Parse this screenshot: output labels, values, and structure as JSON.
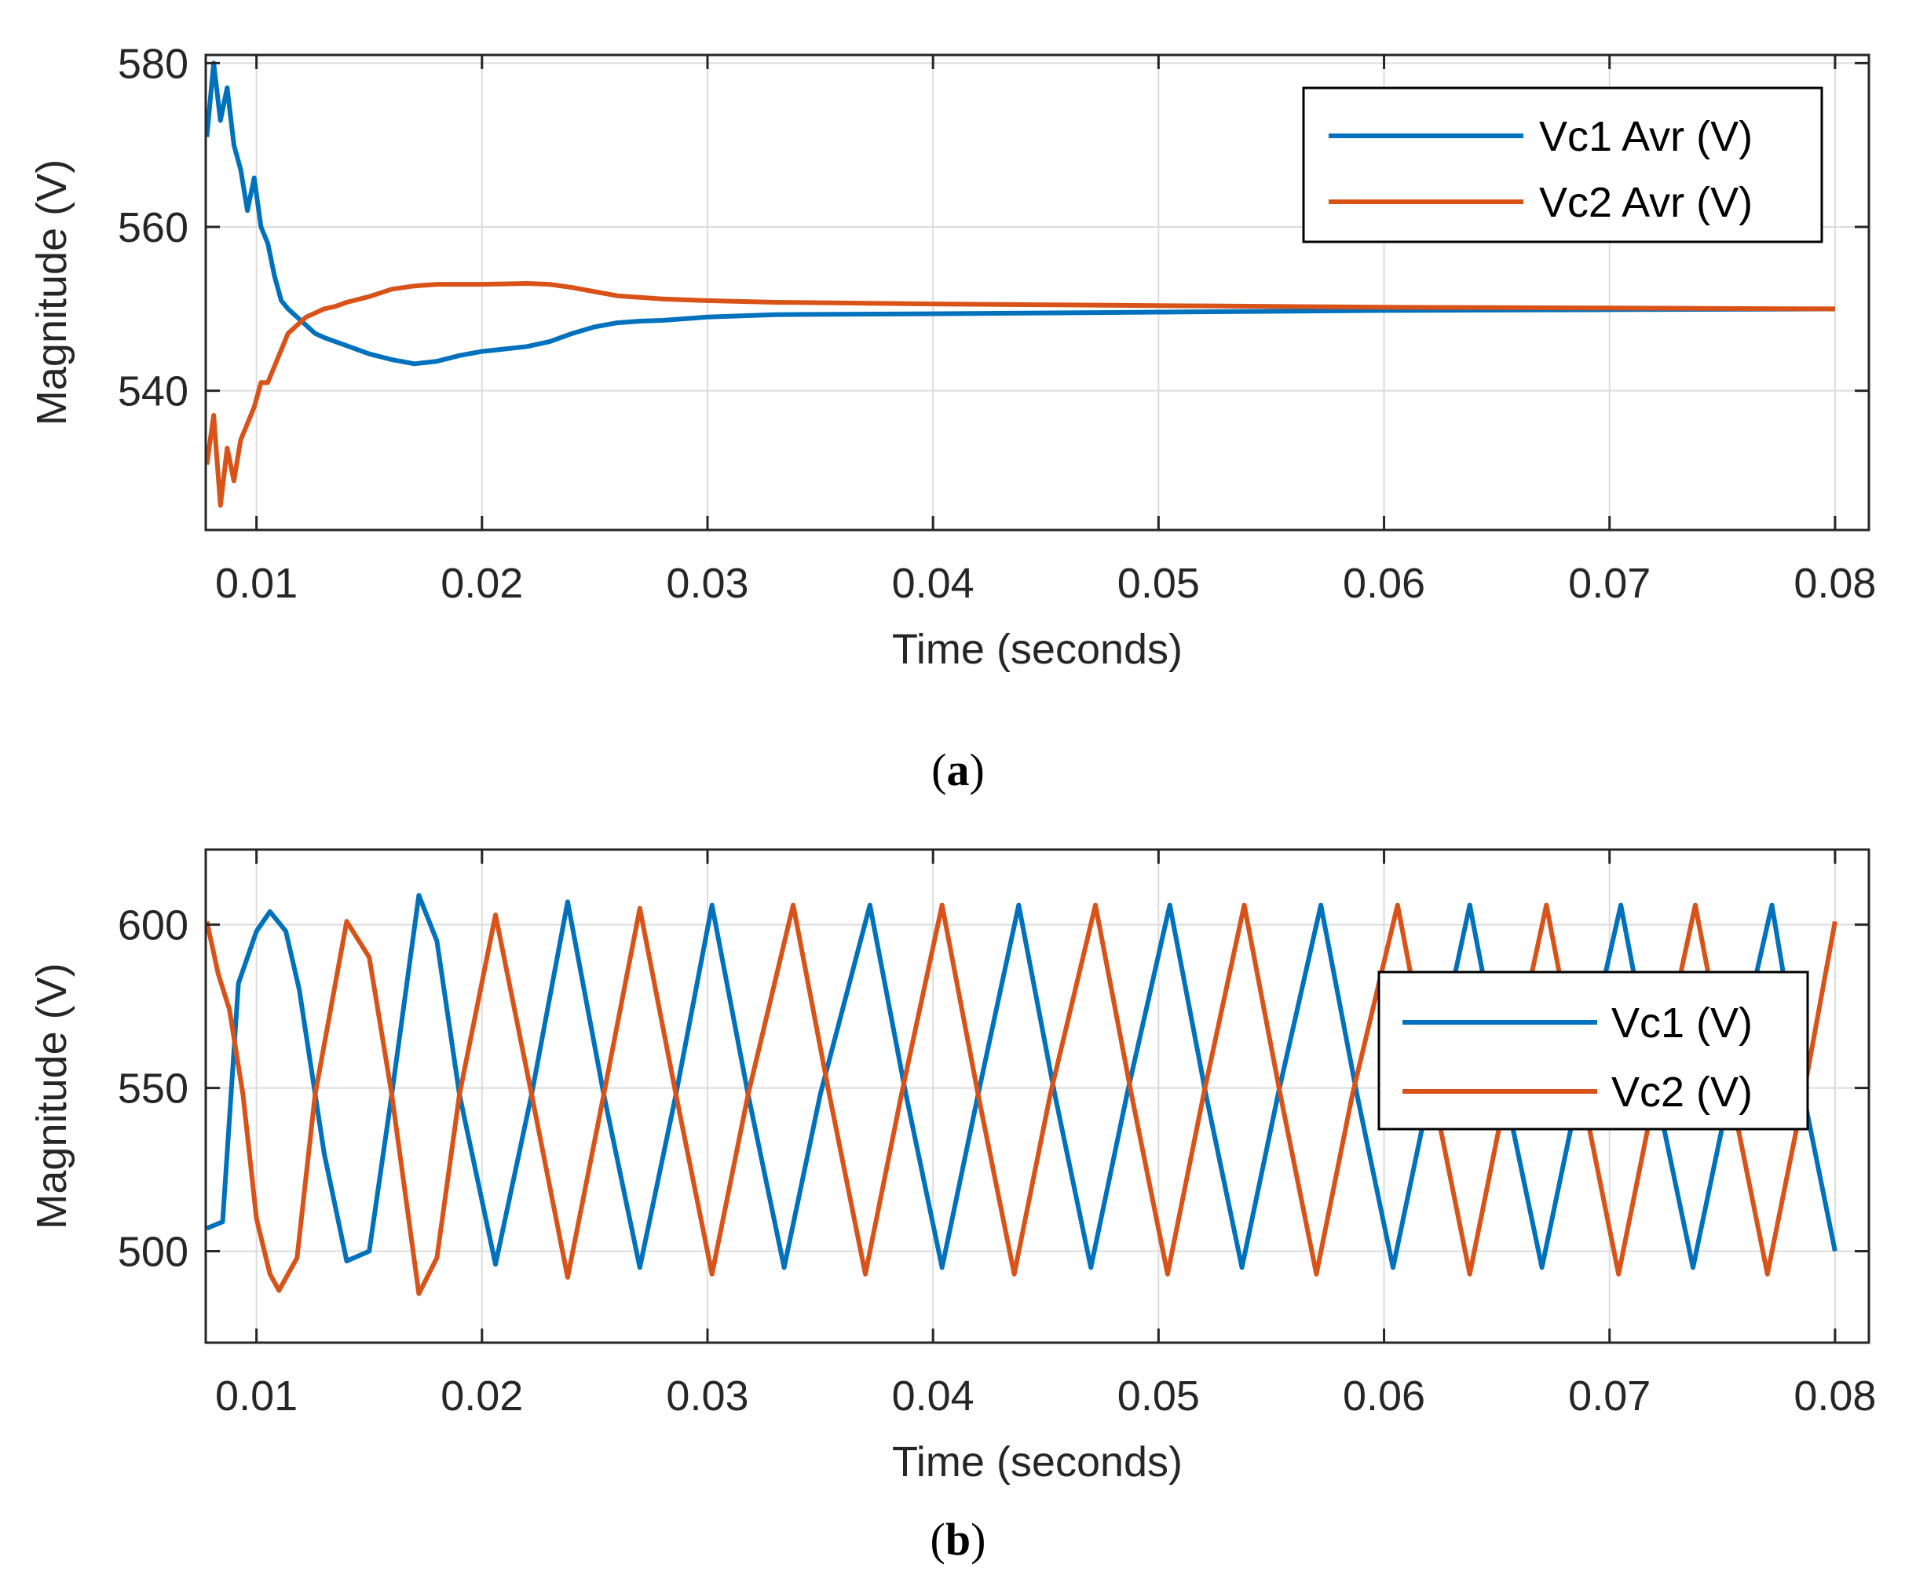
{
  "colors": {
    "vc1": "#0072BD",
    "vc2": "#D95319",
    "axis": "#262626",
    "grid": "#DCDCDC"
  },
  "chart_data": [
    {
      "type": "line",
      "caption_letter": "a",
      "xlabel": "Time (seconds)",
      "ylabel": "Magnitude (V)",
      "xlim": [
        0.00775,
        0.0815
      ],
      "ylim": [
        523,
        581
      ],
      "x_ticks": [
        0.01,
        0.02,
        0.03,
        0.04,
        0.05,
        0.06,
        0.07,
        0.08
      ],
      "x_tick_labels": [
        "0.01",
        "0.02",
        "0.03",
        "0.04",
        "0.05",
        "0.06",
        "0.07",
        "0.08"
      ],
      "y_ticks": [
        540,
        560,
        580
      ],
      "y_tick_labels": [
        "540",
        "560",
        "580"
      ],
      "grid": true,
      "legend_position": "top-right",
      "series": [
        {
          "name": "Vc1 Avr (V)",
          "color_key": "vc1",
          "points": [
            [
              0.0078,
              571
            ],
            [
              0.0081,
              580
            ],
            [
              0.0084,
              573
            ],
            [
              0.0087,
              577
            ],
            [
              0.009,
              570
            ],
            [
              0.0093,
              567
            ],
            [
              0.0096,
              562
            ],
            [
              0.0099,
              566
            ],
            [
              0.0102,
              560
            ],
            [
              0.0105,
              558
            ],
            [
              0.0108,
              554
            ],
            [
              0.0111,
              551
            ],
            [
              0.0114,
              550
            ],
            [
              0.0118,
              549
            ],
            [
              0.0122,
              548
            ],
            [
              0.0126,
              547
            ],
            [
              0.013,
              546.5
            ],
            [
              0.0135,
              546
            ],
            [
              0.014,
              545.5
            ],
            [
              0.0145,
              545
            ],
            [
              0.015,
              544.5
            ],
            [
              0.016,
              543.8
            ],
            [
              0.017,
              543.3
            ],
            [
              0.018,
              543.6
            ],
            [
              0.019,
              544.3
            ],
            [
              0.02,
              544.8
            ],
            [
              0.021,
              545.1
            ],
            [
              0.022,
              545.4
            ],
            [
              0.023,
              546
            ],
            [
              0.024,
              547
            ],
            [
              0.025,
              547.8
            ],
            [
              0.026,
              548.3
            ],
            [
              0.027,
              548.5
            ],
            [
              0.028,
              548.6
            ],
            [
              0.03,
              549
            ],
            [
              0.033,
              549.3
            ],
            [
              0.04,
              549.4
            ],
            [
              0.05,
              549.6
            ],
            [
              0.06,
              549.8
            ],
            [
              0.07,
              549.9
            ],
            [
              0.08,
              550
            ]
          ]
        },
        {
          "name": "Vc2 Avr (V)",
          "color_key": "vc2",
          "points": [
            [
              0.0078,
              531
            ],
            [
              0.0081,
              537
            ],
            [
              0.0084,
              526
            ],
            [
              0.0087,
              533
            ],
            [
              0.009,
              529
            ],
            [
              0.0093,
              534
            ],
            [
              0.0096,
              536
            ],
            [
              0.0099,
              538
            ],
            [
              0.0102,
              541
            ],
            [
              0.0105,
              541
            ],
            [
              0.0108,
              543
            ],
            [
              0.0111,
              545
            ],
            [
              0.0114,
              547
            ],
            [
              0.0118,
              548
            ],
            [
              0.0122,
              549
            ],
            [
              0.0126,
              549.5
            ],
            [
              0.013,
              550
            ],
            [
              0.0135,
              550.3
            ],
            [
              0.014,
              550.8
            ],
            [
              0.015,
              551.5
            ],
            [
              0.016,
              552.4
            ],
            [
              0.017,
              552.8
            ],
            [
              0.018,
              553
            ],
            [
              0.02,
              553
            ],
            [
              0.022,
              553.1
            ],
            [
              0.023,
              553
            ],
            [
              0.024,
              552.6
            ],
            [
              0.025,
              552.1
            ],
            [
              0.026,
              551.6
            ],
            [
              0.028,
              551.2
            ],
            [
              0.03,
              551
            ],
            [
              0.033,
              550.8
            ],
            [
              0.04,
              550.6
            ],
            [
              0.05,
              550.4
            ],
            [
              0.06,
              550.2
            ],
            [
              0.07,
              550.1
            ],
            [
              0.08,
              550
            ]
          ]
        }
      ]
    },
    {
      "type": "line",
      "caption_letter": "b",
      "xlabel": "Time (seconds)",
      "ylabel": "Magnitude (V)",
      "xlim": [
        0.00775,
        0.0815
      ],
      "ylim": [
        472,
        623
      ],
      "x_ticks": [
        0.01,
        0.02,
        0.03,
        0.04,
        0.05,
        0.06,
        0.07,
        0.08
      ],
      "x_tick_labels": [
        "0.01",
        "0.02",
        "0.03",
        "0.04",
        "0.05",
        "0.06",
        "0.07",
        "0.08"
      ],
      "y_ticks": [
        500,
        550,
        600
      ],
      "y_tick_labels": [
        "500",
        "550",
        "600"
      ],
      "grid": true,
      "legend_position": "center-right",
      "series": [
        {
          "name": "Vc1 (V)",
          "color_key": "vc1",
          "points": [
            [
              0.0078,
              507
            ],
            [
              0.0085,
              509
            ],
            [
              0.0092,
              582
            ],
            [
              0.01,
              598
            ],
            [
              0.0106,
              604
            ],
            [
              0.0113,
              598
            ],
            [
              0.0119,
              580
            ],
            [
              0.013,
              530
            ],
            [
              0.014,
              497
            ],
            [
              0.015,
              500
            ],
            [
              0.016,
              548
            ],
            [
              0.0172,
              609
            ],
            [
              0.018,
              595
            ],
            [
              0.019,
              548
            ],
            [
              0.0206,
              496
            ],
            [
              0.0222,
              548
            ],
            [
              0.0238,
              607
            ],
            [
              0.0254,
              548
            ],
            [
              0.027,
              495
            ],
            [
              0.0286,
              548
            ],
            [
              0.0302,
              606
            ],
            [
              0.0318,
              548
            ],
            [
              0.0334,
              495
            ],
            [
              0.035,
              548
            ],
            [
              0.0372,
              606
            ],
            [
              0.0388,
              548
            ],
            [
              0.0404,
              495
            ],
            [
              0.042,
              548
            ],
            [
              0.0438,
              606
            ],
            [
              0.0454,
              548
            ],
            [
              0.047,
              495
            ],
            [
              0.0486,
              548
            ],
            [
              0.0505,
              606
            ],
            [
              0.0521,
              548
            ],
            [
              0.0537,
              495
            ],
            [
              0.0553,
              548
            ],
            [
              0.0572,
              606
            ],
            [
              0.0588,
              548
            ],
            [
              0.0604,
              495
            ],
            [
              0.062,
              548
            ],
            [
              0.0638,
              606
            ],
            [
              0.0654,
              548
            ],
            [
              0.067,
              495
            ],
            [
              0.0686,
              548
            ],
            [
              0.0705,
              606
            ],
            [
              0.0721,
              548
            ],
            [
              0.0737,
              495
            ],
            [
              0.0753,
              548
            ],
            [
              0.0772,
              606
            ],
            [
              0.0786,
              548
            ],
            [
              0.08,
              500
            ]
          ]
        },
        {
          "name": "Vc2 (V)",
          "color_key": "vc2",
          "points": [
            [
              0.0078,
              601
            ],
            [
              0.0083,
              585
            ],
            [
              0.0088,
              574
            ],
            [
              0.0094,
              548
            ],
            [
              0.01,
              510
            ],
            [
              0.0106,
              493
            ],
            [
              0.011,
              488
            ],
            [
              0.0118,
              498
            ],
            [
              0.0126,
              548
            ],
            [
              0.014,
              601
            ],
            [
              0.015,
              590
            ],
            [
              0.016,
              548
            ],
            [
              0.0172,
              487
            ],
            [
              0.018,
              498
            ],
            [
              0.019,
              548
            ],
            [
              0.0206,
              603
            ],
            [
              0.0222,
              548
            ],
            [
              0.0238,
              492
            ],
            [
              0.0254,
              548
            ],
            [
              0.027,
              605
            ],
            [
              0.0286,
              548
            ],
            [
              0.0302,
              493
            ],
            [
              0.0318,
              548
            ],
            [
              0.0338,
              606
            ],
            [
              0.0354,
              548
            ],
            [
              0.037,
              493
            ],
            [
              0.0386,
              548
            ],
            [
              0.0404,
              606
            ],
            [
              0.042,
              548
            ],
            [
              0.0436,
              493
            ],
            [
              0.0452,
              548
            ],
            [
              0.0472,
              606
            ],
            [
              0.0488,
              548
            ],
            [
              0.0504,
              493
            ],
            [
              0.052,
              548
            ],
            [
              0.0538,
              606
            ],
            [
              0.0554,
              548
            ],
            [
              0.057,
              493
            ],
            [
              0.0586,
              548
            ],
            [
              0.0606,
              606
            ],
            [
              0.0622,
              548
            ],
            [
              0.0638,
              493
            ],
            [
              0.0654,
              548
            ],
            [
              0.0672,
              606
            ],
            [
              0.0688,
              548
            ],
            [
              0.0704,
              493
            ],
            [
              0.072,
              548
            ],
            [
              0.0738,
              606
            ],
            [
              0.0754,
              548
            ],
            [
              0.077,
              493
            ],
            [
              0.0786,
              548
            ],
            [
              0.08,
              601
            ]
          ]
        }
      ]
    }
  ]
}
